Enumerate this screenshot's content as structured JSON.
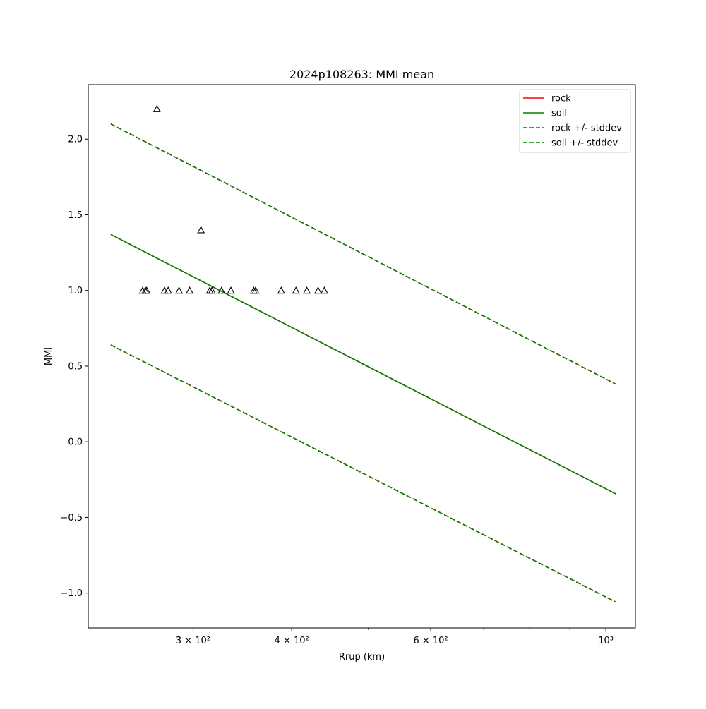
{
  "chart_data": {
    "type": "line",
    "title": "2024p108263: MMI mean",
    "xlabel": "Rrup (km)",
    "ylabel": "MMI",
    "xscale": "log",
    "xlim": [
      221,
      1090
    ],
    "ylim": [
      -1.23,
      2.36
    ],
    "grid": false,
    "legend_position": "top-right",
    "x_ticks": [
      {
        "value": 300,
        "label": "3 × 10²"
      },
      {
        "value": 400,
        "label": "4 × 10²"
      },
      {
        "value": 600,
        "label": "6 × 10²"
      },
      {
        "value": 1000,
        "label": "10³"
      }
    ],
    "x_minor_ticks": [
      500,
      700,
      800,
      900
    ],
    "y_ticks": [
      {
        "value": -1.0,
        "label": "−1.0"
      },
      {
        "value": -0.5,
        "label": "−0.5"
      },
      {
        "value": 0.0,
        "label": "0.0"
      },
      {
        "value": 0.5,
        "label": "0.5"
      },
      {
        "value": 1.0,
        "label": "1.0"
      },
      {
        "value": 1.5,
        "label": "1.5"
      },
      {
        "value": 2.0,
        "label": "2.0"
      }
    ],
    "series": [
      {
        "name": "rock",
        "style": "solid",
        "color": "#ff0000",
        "x": [
          236,
          1030
        ],
        "y": [
          1.37,
          -0.345
        ]
      },
      {
        "name": "soil",
        "style": "solid",
        "color": "#008000",
        "x": [
          236,
          1030
        ],
        "y": [
          1.37,
          -0.345
        ]
      },
      {
        "name": "rock +/- stddev",
        "style": "dashed",
        "color": "#ff0000",
        "x": [
          236,
          1030
        ],
        "y": [
          2.1,
          0.38
        ],
        "x2": [
          236,
          1030
        ],
        "y2": [
          0.64,
          -1.06
        ]
      },
      {
        "name": "soil +/- stddev",
        "style": "dashed",
        "color": "#008000",
        "x": [
          236,
          1030
        ],
        "y": [
          2.1,
          0.38
        ],
        "x2": [
          236,
          1030
        ],
        "y2": [
          0.64,
          -1.06
        ]
      }
    ],
    "observations": {
      "marker": "triangle",
      "x": [
        259,
        261,
        262,
        270,
        276,
        279,
        288,
        297,
        307,
        315,
        317,
        326,
        335,
        358,
        360,
        388,
        405,
        418,
        432,
        440
      ],
      "y": [
        1.0,
        1.0,
        1.0,
        2.2,
        1.0,
        1.0,
        1.0,
        1.0,
        1.4,
        1.0,
        1.0,
        1.0,
        1.0,
        1.0,
        1.0,
        1.0,
        1.0,
        1.0,
        1.0,
        1.0
      ]
    }
  }
}
